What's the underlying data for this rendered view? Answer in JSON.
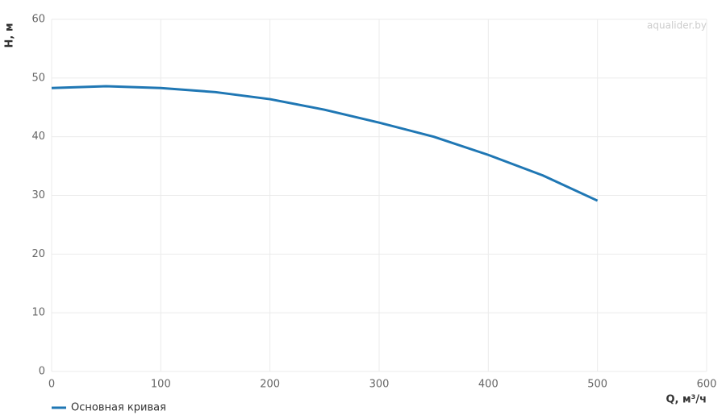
{
  "chart_data": {
    "type": "line",
    "x_label": "Q, м³/ч",
    "y_label": "H, м",
    "watermark": "aqualider.by",
    "x": [
      0,
      50,
      100,
      150,
      200,
      250,
      300,
      350,
      400,
      450,
      500
    ],
    "series": [
      {
        "name": "Основная кривая",
        "color": "#1f77b4",
        "values": [
          48.3,
          48.6,
          48.3,
          47.6,
          46.4,
          44.6,
          42.4,
          40.0,
          36.9,
          33.4,
          29.1
        ]
      }
    ],
    "xlim": [
      0,
      600
    ],
    "xticks": [
      0,
      100,
      200,
      300,
      400,
      500,
      600
    ],
    "ylim": [
      0,
      60
    ],
    "yticks": [
      0,
      10,
      20,
      30,
      40,
      50,
      60
    ],
    "grid": true,
    "legend": "bottom-left"
  }
}
